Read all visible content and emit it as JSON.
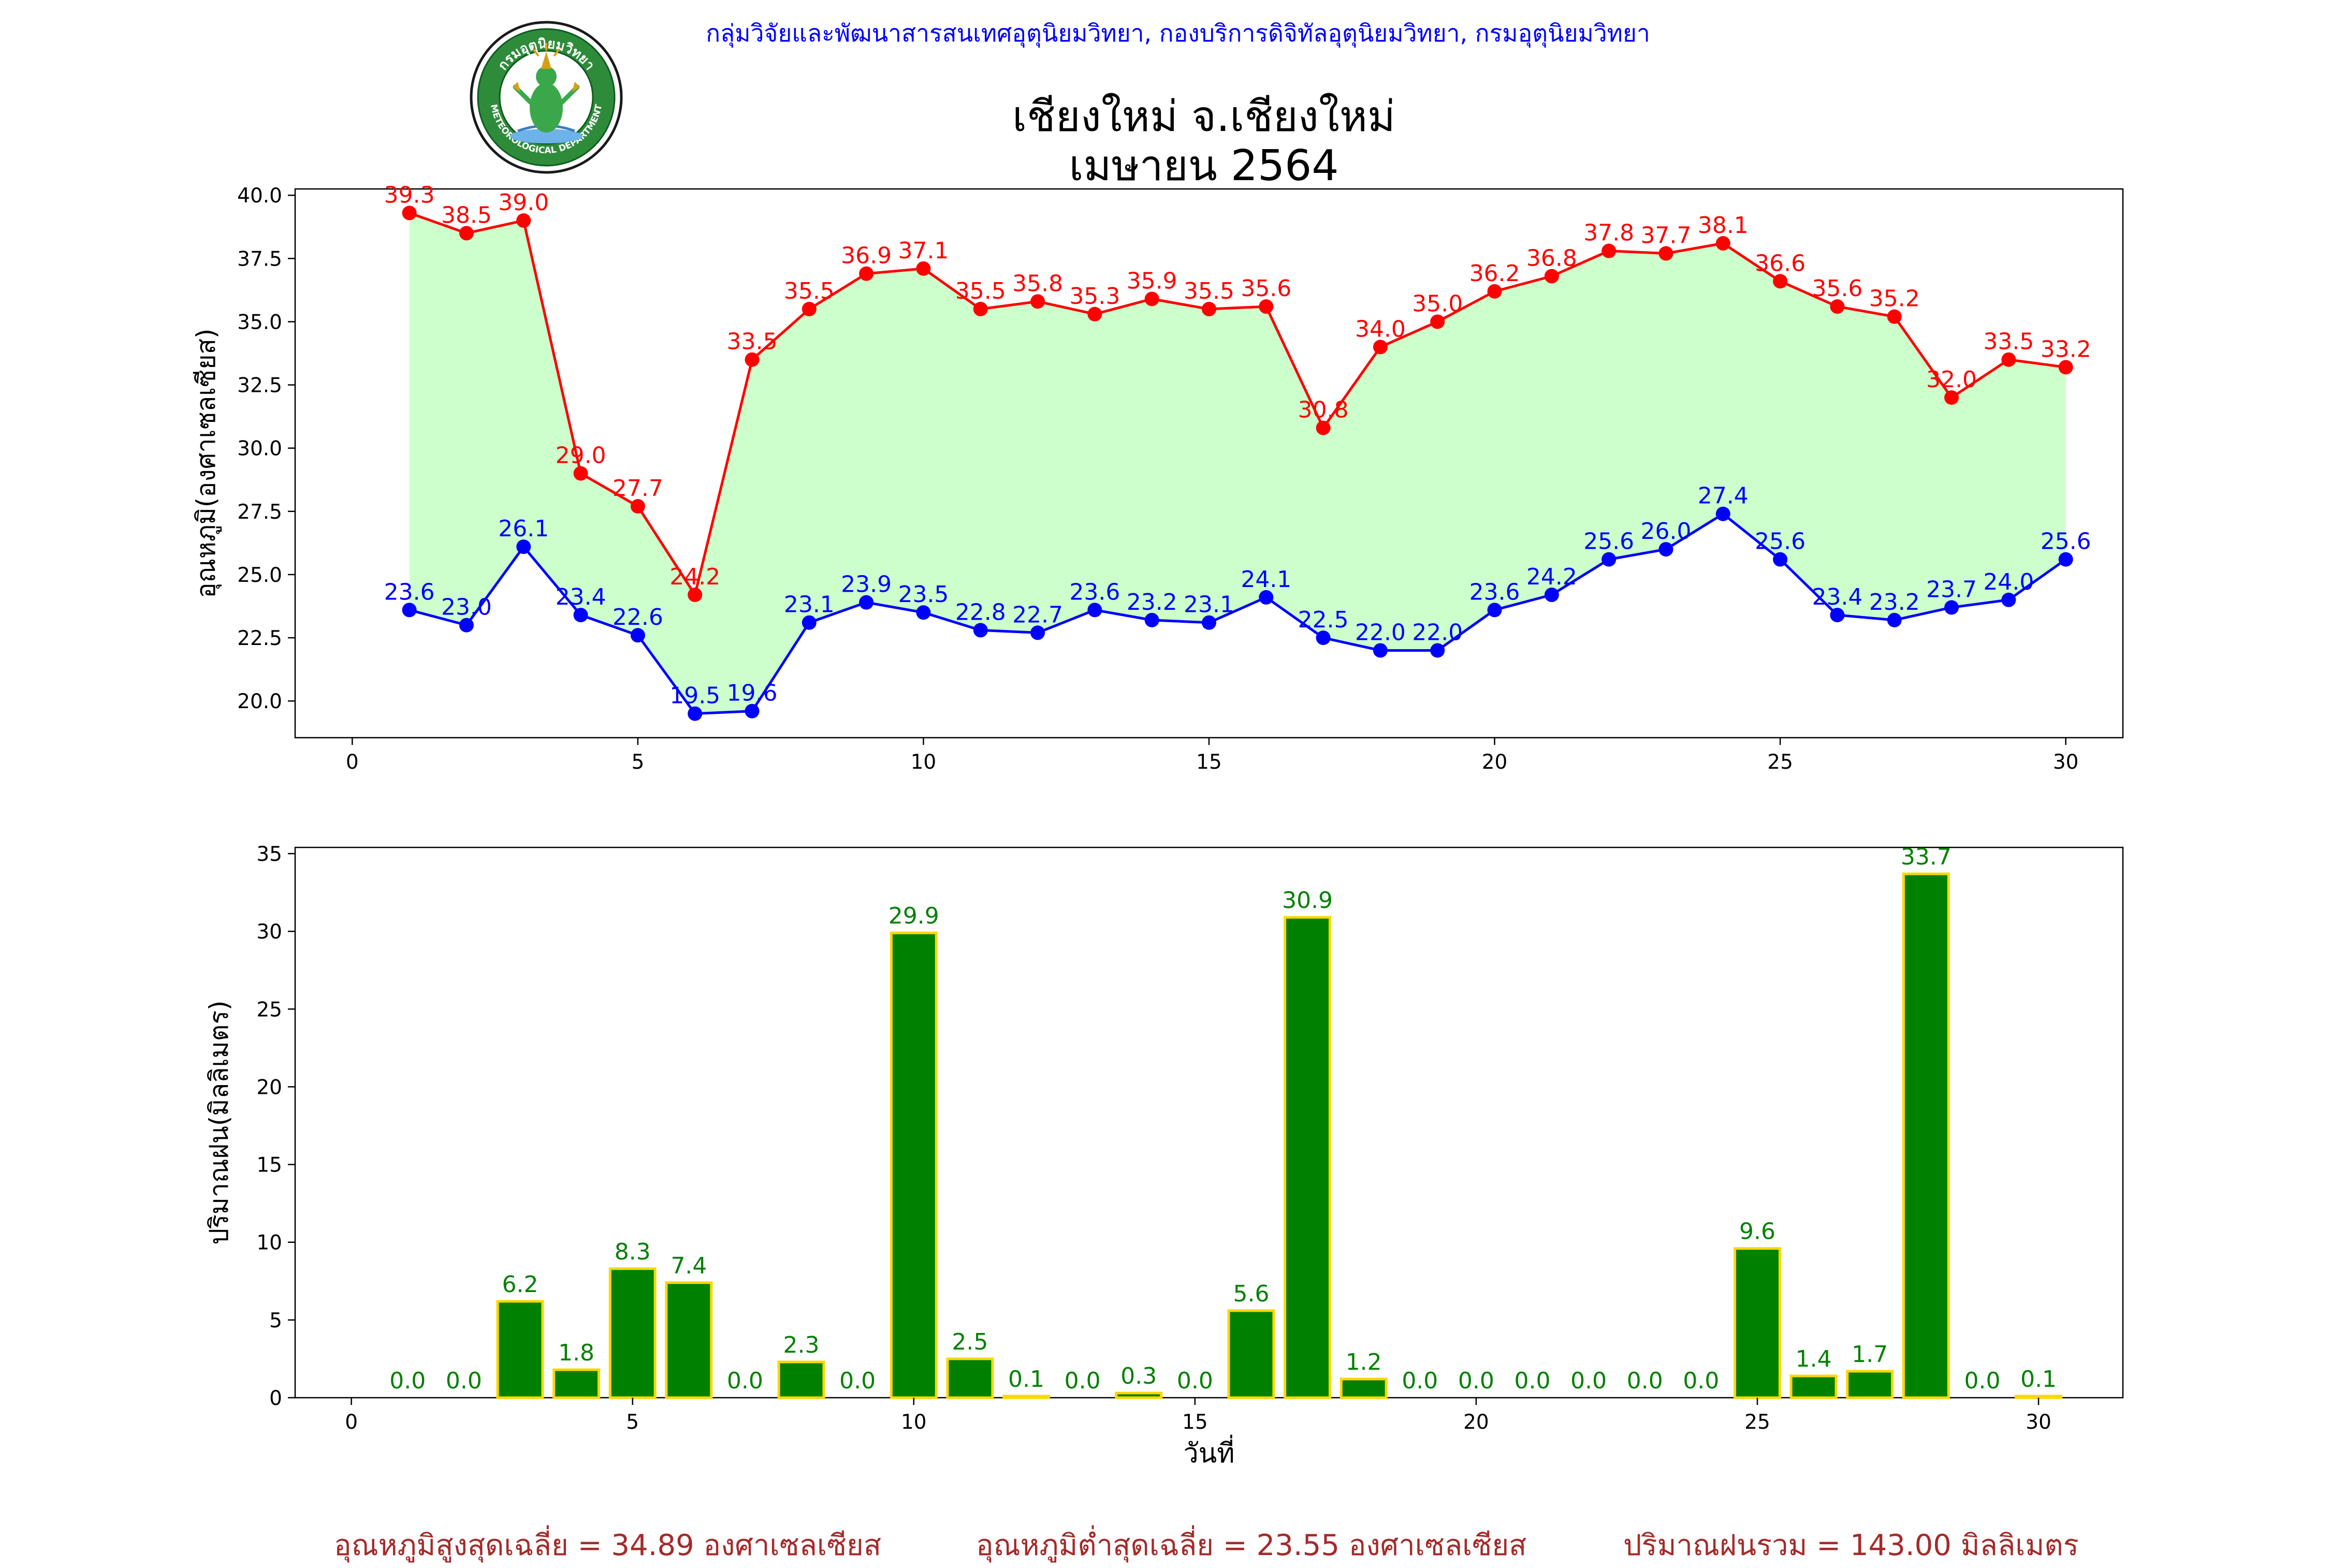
{
  "header": {
    "org": "กลุ่มวิจัยและพัฒนาสารสนเทศอุตุนิยมวิทยา, กองบริการดิจิทัลอุตุนิยมวิทยา, กรมอุตุนิยมวิทยา",
    "title_line1": "เชียงใหม่ จ.เชียงใหม่",
    "title_line2": "เมษายน 2564"
  },
  "logo": {
    "top_text": "กรมอุตุนิยมวิทยา",
    "bottom_text": "METEOROLOGICAL DEPARTMENT",
    "icon": "meteorological-department-seal-icon"
  },
  "colors": {
    "max": "#ff0000",
    "min": "#0000ff",
    "fill": "#ccffcc",
    "rain_bar": "#008000",
    "rain_edge": "#ffd700",
    "rain_label": "#008000",
    "footer": "#a52a2a"
  },
  "chart_data": [
    {
      "type": "line",
      "ylabel": "อุณหภูมิ(องศาเซลเซียส)",
      "xlabel": "",
      "xlim": [
        -1,
        31
      ],
      "ylim": [
        18.55,
        40.25
      ],
      "xticks": [
        0,
        5,
        10,
        15,
        20,
        25,
        30
      ],
      "yticks": [
        20.0,
        22.5,
        25.0,
        27.5,
        30.0,
        32.5,
        35.0,
        37.5,
        40.0
      ],
      "grid": false,
      "fill_between": true,
      "x": [
        1,
        2,
        3,
        4,
        5,
        6,
        7,
        8,
        9,
        10,
        11,
        12,
        13,
        14,
        15,
        16,
        17,
        18,
        19,
        20,
        21,
        22,
        23,
        24,
        25,
        26,
        27,
        28,
        29,
        30
      ],
      "series": [
        {
          "key": "max",
          "values": [
            39.3,
            38.5,
            39.0,
            29.0,
            27.7,
            24.2,
            33.5,
            35.5,
            36.9,
            37.1,
            35.5,
            35.8,
            35.3,
            35.9,
            35.5,
            35.6,
            30.8,
            34.0,
            35.0,
            36.2,
            36.8,
            37.8,
            37.7,
            38.1,
            36.6,
            35.6,
            35.2,
            32.0,
            33.5,
            33.2
          ]
        },
        {
          "key": "min",
          "values": [
            23.6,
            23.0,
            26.1,
            23.4,
            22.6,
            19.5,
            19.6,
            23.1,
            23.9,
            23.5,
            22.8,
            22.7,
            23.6,
            23.2,
            23.1,
            24.1,
            22.5,
            22.0,
            22.0,
            23.6,
            24.2,
            25.6,
            26.0,
            27.4,
            25.6,
            23.4,
            23.2,
            23.7,
            24.0,
            25.6
          ]
        }
      ]
    },
    {
      "type": "bar",
      "ylabel": "ปริมาณฝน(มิลลิเมตร)",
      "xlabel": "วันที่",
      "xlim": [
        -1,
        31.5
      ],
      "ylim": [
        0,
        35.4
      ],
      "xticks": [
        0,
        5,
        10,
        15,
        20,
        25,
        30
      ],
      "yticks": [
        0,
        5,
        10,
        15,
        20,
        25,
        30,
        35
      ],
      "grid": false,
      "x": [
        1,
        2,
        3,
        4,
        5,
        6,
        7,
        8,
        9,
        10,
        11,
        12,
        13,
        14,
        15,
        16,
        17,
        18,
        19,
        20,
        21,
        22,
        23,
        24,
        25,
        26,
        27,
        28,
        29,
        30
      ],
      "values": [
        0.0,
        0.0,
        6.2,
        1.8,
        8.3,
        7.4,
        0.0,
        2.3,
        0.0,
        29.9,
        2.5,
        0.1,
        0.0,
        0.3,
        0.0,
        5.6,
        30.9,
        1.2,
        0.0,
        0.0,
        0.0,
        0.0,
        0.0,
        0.0,
        9.6,
        1.4,
        1.7,
        33.7,
        0.0,
        0.1
      ]
    }
  ],
  "footer": {
    "avg_max": "อุณหภูมิสูงสุดเฉลี่ย = 34.89 องศาเซลเซียส",
    "avg_min": "อุณหภูมิต่ำสุดเฉลี่ย = 23.55 องศาเซลเซียส",
    "total_rain": "ปริมาณฝนรวม = 143.00 มิลลิเมตร"
  }
}
